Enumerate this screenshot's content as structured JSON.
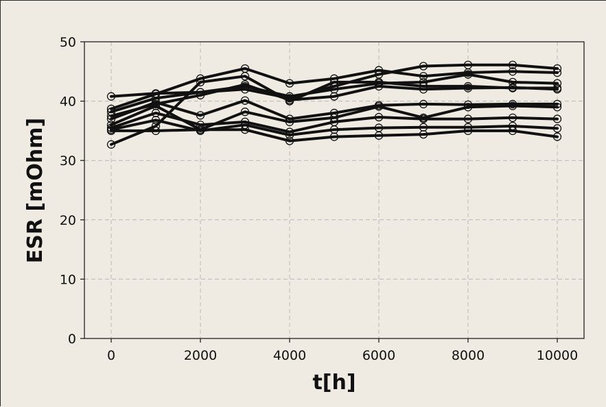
{
  "chart_data": {
    "type": "line",
    "title": "",
    "xlabel": "t[h]",
    "ylabel": "ESR [mOhm]",
    "xlim": [
      -600,
      10600
    ],
    "ylim": [
      0,
      50
    ],
    "x_ticks": [
      0,
      2000,
      4000,
      6000,
      8000,
      10000
    ],
    "y_ticks": [
      0,
      10,
      20,
      30,
      40,
      50
    ],
    "grid": true,
    "legend": "none",
    "x": [
      0,
      1000,
      2000,
      3000,
      4000,
      5000,
      6000,
      7000,
      8000,
      9000,
      10000
    ],
    "series": [
      {
        "values": [
          40.8,
          41.3,
          41.5,
          42.5,
          40.8,
          42.0,
          43.0,
          43.2,
          44.5,
          43.2,
          43.0
        ]
      },
      {
        "values": [
          38.7,
          41.2,
          43.8,
          45.5,
          43.0,
          43.8,
          45.2,
          44.2,
          44.8,
          45.0,
          44.8
        ]
      },
      {
        "values": [
          38.2,
          40.5,
          41.5,
          42.0,
          40.5,
          42.5,
          44.5,
          45.9,
          46.1,
          46.1,
          45.5
        ]
      },
      {
        "values": [
          37.5,
          39.5,
          41.0,
          42.8,
          40.2,
          40.8,
          42.5,
          42.0,
          42.2,
          42.3,
          42.0
        ]
      },
      {
        "values": [
          32.7,
          35.8,
          43.2,
          44.2,
          40.0,
          43.2,
          43.2,
          42.5,
          42.5,
          42.2,
          42.2
        ]
      },
      {
        "values": [
          37.0,
          39.8,
          37.6,
          40.1,
          37.0,
          38.0,
          39.3,
          39.5,
          39.4,
          39.5,
          39.5
        ]
      },
      {
        "values": [
          36.0,
          39.2,
          35.2,
          38.2,
          36.5,
          37.2,
          39.1,
          37.2,
          39.0,
          39.2,
          39.0
        ]
      },
      {
        "values": [
          35.5,
          38.0,
          36.0,
          36.5,
          34.8,
          36.5,
          37.3,
          37.0,
          37.0,
          37.2,
          37.0
        ]
      },
      {
        "values": [
          35.2,
          36.8,
          35.0,
          36.0,
          34.3,
          35.2,
          35.5,
          35.6,
          35.6,
          35.8,
          35.4
        ]
      },
      {
        "values": [
          35.0,
          35.0,
          35.2,
          35.2,
          33.3,
          34.0,
          34.2,
          34.4,
          35.0,
          35.0,
          34.0
        ]
      }
    ]
  }
}
